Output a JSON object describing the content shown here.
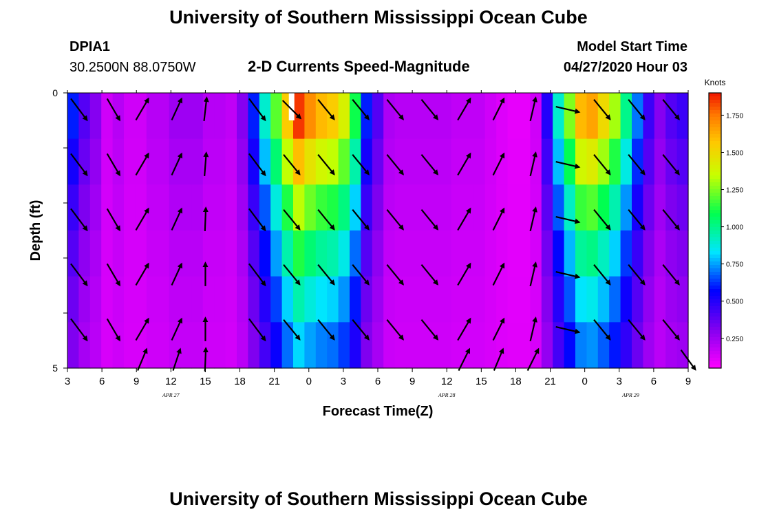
{
  "page": {
    "title_top": "University of Southern Mississippi Ocean Cube",
    "title_bottom": "University of Southern Mississippi Ocean Cube",
    "station_id": "DPIA1",
    "station_coords": "30.2500N 88.0750W",
    "chart_title": "2-D Currents Speed-Magnitude",
    "model_label": "Model Start Time",
    "model_time": "04/27/2020 Hour 03"
  },
  "chart_data": {
    "type": "heatmap",
    "title": "2-D Currents Speed-Magnitude",
    "xlabel": "Forecast Time(Z)",
    "ylabel": "Depth (ft)",
    "y_ticks": [
      "0",
      "5"
    ],
    "ylim": [
      0,
      5
    ],
    "x_ticks": [
      "3",
      "6",
      "9",
      "12",
      "15",
      "18",
      "21",
      "0",
      "3",
      "6",
      "9",
      "12",
      "15",
      "18",
      "21",
      "0",
      "3",
      "6",
      "9"
    ],
    "date_labels": [
      {
        "text": "APR 27",
        "at_hour": 12
      },
      {
        "text": "APR 28",
        "at_hour": 36
      },
      {
        "text": "APR 29",
        "at_hour": 52
      }
    ],
    "x_start_hour": 3,
    "x_end_hour": 57,
    "colorbar": {
      "title": "Knots",
      "ticks": [
        "0.250",
        "0.500",
        "0.750",
        "1.000",
        "1.250",
        "1.500",
        "1.750"
      ],
      "min": 0.05,
      "max": 1.9
    },
    "depth_layers": 5,
    "surface_speed": [
      0.6,
      0.4,
      0.3,
      0.15,
      0.2,
      0.15,
      0.15,
      0.2,
      0.2,
      0.25,
      0.25,
      0.25,
      0.2,
      0.2,
      0.18,
      0.3,
      0.6,
      0.9,
      1.2,
      1.55,
      1.85,
      1.7,
      1.6,
      1.55,
      1.4,
      1.1,
      0.6,
      0.4,
      0.22,
      0.2,
      0.2,
      0.2,
      0.2,
      0.2,
      0.18,
      0.18,
      0.18,
      0.15,
      0.12,
      0.1,
      0.1,
      0.15,
      0.5,
      0.9,
      1.25,
      1.6,
      1.65,
      1.5,
      1.3,
      1.0,
      0.7,
      0.45,
      0.3,
      0.4,
      0.45
    ],
    "depth_factor": [
      1.0,
      0.85,
      0.7,
      0.58,
      0.48,
      0.4
    ],
    "white_marker_hour": 22.5,
    "vector_hours": [
      4,
      7,
      9.5,
      12.5,
      15,
      19.5,
      22.5,
      25.5,
      28.5,
      31.5,
      34.5,
      37.5,
      40.5,
      43.5,
      46.5,
      49.5,
      52.5,
      55.5
    ],
    "vector_depths": [
      0.2,
      1.2,
      2.2,
      3.2,
      4.2
    ],
    "vector_bottom_depth": 4.85,
    "vectors": [
      [
        [
          0.9,
          1.2
        ],
        [
          0.7,
          1.2
        ],
        [
          0.7,
          -1.2
        ],
        [
          0.55,
          -1.2
        ],
        [
          0.15,
          -1.3
        ],
        [
          0.9,
          1.2
        ],
        [
          1.0,
          1.0
        ],
        [
          0.9,
          1.1
        ],
        [
          0.9,
          1.1
        ],
        [
          0.9,
          1.1
        ],
        [
          0.9,
          1.1
        ],
        [
          0.7,
          -1.2
        ],
        [
          0.6,
          -1.2
        ],
        [
          0.3,
          -1.3
        ],
        [
          1.3,
          0.3
        ],
        [
          0.9,
          1.1
        ],
        [
          0.9,
          1.1
        ],
        [
          0.9,
          1.1
        ]
      ],
      [
        [
          0.9,
          1.2
        ],
        [
          0.7,
          1.2
        ],
        [
          0.7,
          -1.2
        ],
        [
          0.55,
          -1.2
        ],
        [
          0.1,
          -1.3
        ],
        [
          0.9,
          1.2
        ],
        [
          0.9,
          1.1
        ],
        [
          0.9,
          1.1
        ],
        [
          0.9,
          1.1
        ],
        [
          0.9,
          1.1
        ],
        [
          0.9,
          1.1
        ],
        [
          0.7,
          -1.2
        ],
        [
          0.6,
          -1.2
        ],
        [
          0.3,
          -1.3
        ],
        [
          1.3,
          0.3
        ],
        [
          0.9,
          1.1
        ],
        [
          0.9,
          1.1
        ],
        [
          0.9,
          1.1
        ]
      ],
      [
        [
          0.9,
          1.2
        ],
        [
          0.7,
          1.2
        ],
        [
          0.7,
          -1.2
        ],
        [
          0.55,
          -1.2
        ],
        [
          0.05,
          -1.3
        ],
        [
          0.9,
          1.2
        ],
        [
          0.9,
          1.1
        ],
        [
          0.9,
          1.1
        ],
        [
          0.9,
          1.1
        ],
        [
          0.9,
          1.1
        ],
        [
          0.9,
          1.1
        ],
        [
          0.7,
          -1.2
        ],
        [
          0.6,
          -1.2
        ],
        [
          0.3,
          -1.3
        ],
        [
          1.3,
          0.3
        ],
        [
          0.9,
          1.1
        ],
        [
          0.9,
          1.1
        ],
        [
          0.9,
          1.1
        ]
      ],
      [
        [
          0.9,
          1.2
        ],
        [
          0.7,
          1.2
        ],
        [
          0.7,
          -1.2
        ],
        [
          0.55,
          -1.2
        ],
        [
          0.0,
          -1.3
        ],
        [
          0.9,
          1.2
        ],
        [
          0.9,
          1.1
        ],
        [
          0.9,
          1.1
        ],
        [
          0.9,
          1.1
        ],
        [
          0.9,
          1.1
        ],
        [
          0.9,
          1.1
        ],
        [
          0.7,
          -1.2
        ],
        [
          0.6,
          -1.2
        ],
        [
          0.3,
          -1.3
        ],
        [
          1.3,
          0.3
        ],
        [
          0.9,
          1.1
        ],
        [
          0.9,
          1.1
        ],
        [
          0.9,
          1.1
        ]
      ],
      [
        [
          0.9,
          1.2
        ],
        [
          0.7,
          1.2
        ],
        [
          0.7,
          -1.2
        ],
        [
          0.55,
          -1.2
        ],
        [
          0.0,
          -1.3
        ],
        [
          0.9,
          1.2
        ],
        [
          0.9,
          1.1
        ],
        [
          0.9,
          1.1
        ],
        [
          0.9,
          1.1
        ],
        [
          0.9,
          1.1
        ],
        [
          0.9,
          1.1
        ],
        [
          0.7,
          -1.2
        ],
        [
          0.6,
          -1.2
        ],
        [
          0.3,
          -1.3
        ],
        [
          1.3,
          0.3
        ],
        [
          0.9,
          1.1
        ],
        [
          0.9,
          1.1
        ],
        [
          0.9,
          1.1
        ]
      ]
    ],
    "vectors_bottom": [
      [
        0.5,
        -1.2
      ],
      [
        0.4,
        -1.2
      ],
      [
        0.05,
        -1.3
      ],
      [
        0.6,
        -1.2
      ],
      [
        0.5,
        -1.2
      ],
      [
        0.6,
        -1.2
      ],
      [
        0.8,
        1.1
      ]
    ],
    "vectors_bottom_hours": [
      9.5,
      12.5,
      15,
      37.5,
      40.5,
      43.5,
      57
    ]
  }
}
